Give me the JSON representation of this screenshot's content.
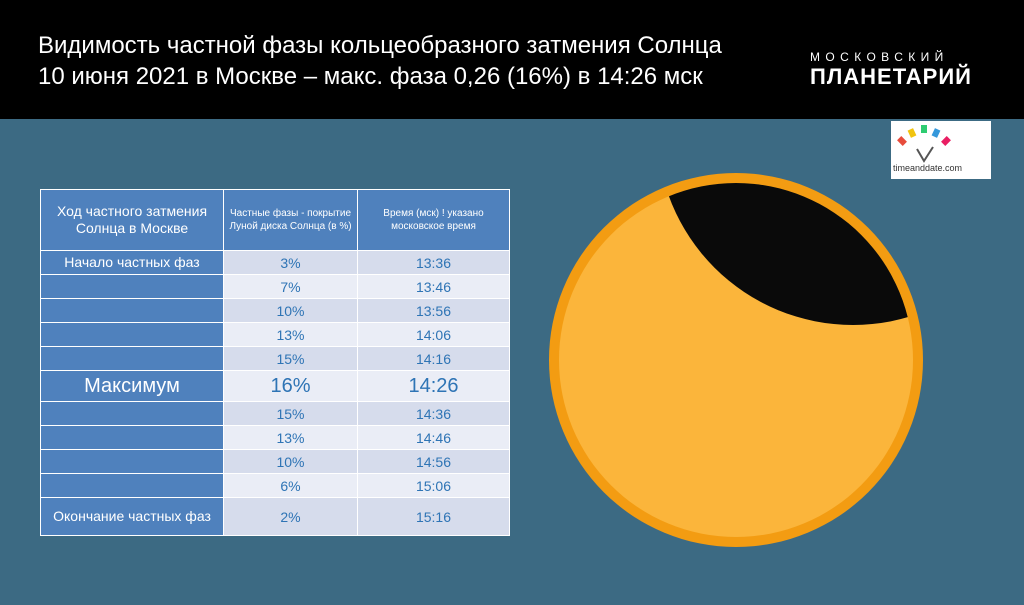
{
  "header": {
    "title_line1": "Видимость частной фазы кольцеобразного затмения Солнца",
    "title_line2": "10 июня 2021 в Москве – макс. фаза 0,26 (16%) в 14:26 мск",
    "brand_small": "МОСКОВСКИЙ",
    "brand_big": "ПЛАНЕТАРИЙ"
  },
  "partner_logo": {
    "text": "timeanddate.com",
    "icon": "timeanddate-logo"
  },
  "table": {
    "headers": {
      "col1": "Ход частного затмения Солнца в Москве",
      "col2": "Частные фазы - покрытие Луной диска Солнца (в %)",
      "col3": "Время (мск) ! указано московское время"
    },
    "rows": [
      {
        "label": "Начало частных фаз",
        "phase": "3%",
        "time": "13:36"
      },
      {
        "label": "",
        "phase": "7%",
        "time": "13:46"
      },
      {
        "label": "",
        "phase": "10%",
        "time": "13:56"
      },
      {
        "label": "",
        "phase": "13%",
        "time": "14:06"
      },
      {
        "label": "",
        "phase": "15%",
        "time": "14:16"
      },
      {
        "label": "Максимум",
        "phase": "16%",
        "time": "14:26"
      },
      {
        "label": "",
        "phase": "15%",
        "time": "14:36"
      },
      {
        "label": "",
        "phase": "13%",
        "time": "14:46"
      },
      {
        "label": "",
        "phase": "10%",
        "time": "14:56"
      },
      {
        "label": "",
        "phase": "6%",
        "time": "15:06"
      },
      {
        "label": "Окончание частных фаз",
        "phase": "2%",
        "time": "15:16"
      }
    ]
  },
  "colors": {
    "background": "#3c6a83",
    "sun_rim": "#f39c12",
    "sun_disc": "#fbb53b",
    "moon": "#0a0a0a",
    "table_label": "#4f81bd"
  }
}
